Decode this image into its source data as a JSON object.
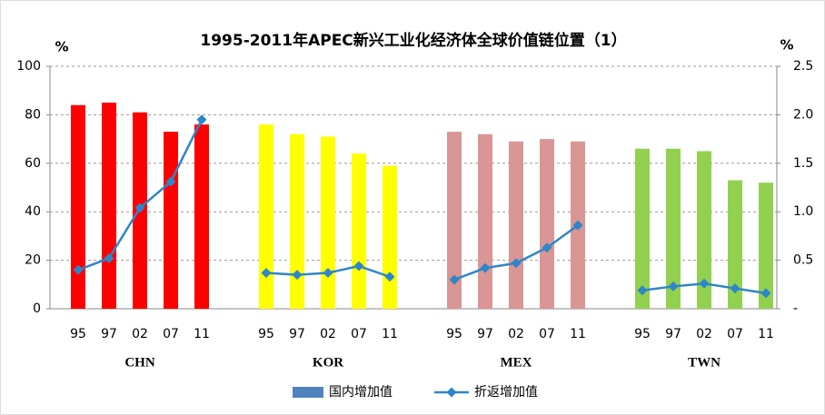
{
  "chart_data": {
    "type": "bar_line",
    "title": "1995-2011年APEC新兴工业化经济体全球价值链位置（1）",
    "y_label": "%",
    "y2_label": "%",
    "ylim": [
      0,
      100
    ],
    "yticks": [
      0,
      20,
      40,
      60,
      80,
      100
    ],
    "y2lim": [
      0,
      2.5
    ],
    "y2ticks": [
      {
        "value": 0,
        "label": "-"
      },
      0.5,
      {
        "value": 1,
        "label": "1.0"
      },
      1.5,
      {
        "value": 2,
        "label": "2.0"
      },
      2.5
    ],
    "grid": true,
    "series": [
      {
        "name": "国内增加值",
        "color": "#4f81bd"
      },
      {
        "name": "折返增加值",
        "color": "#2e86c8",
        "axis": "y2"
      }
    ],
    "groups": [
      {
        "name": "CHN",
        "color": "#ff0000",
        "categories": [
          "95",
          "97",
          "02",
          "07",
          "11"
        ],
        "bar_values": [
          84,
          85,
          81,
          73,
          76
        ],
        "line_values": [
          0.4,
          0.52,
          1.04,
          1.31,
          1.95
        ]
      },
      {
        "name": "KOR",
        "color": "#ffff00",
        "categories": [
          "95",
          "97",
          "02",
          "07",
          "11"
        ],
        "bar_values": [
          76,
          72,
          71,
          64,
          59
        ],
        "line_values": [
          0.37,
          0.35,
          0.37,
          0.44,
          0.33
        ]
      },
      {
        "name": "MEX",
        "color": "#d99694",
        "categories": [
          "95",
          "97",
          "02",
          "07",
          "11"
        ],
        "bar_values": [
          73,
          72,
          69,
          70,
          69
        ],
        "line_values": [
          0.3,
          0.42,
          0.47,
          0.63,
          0.86
        ]
      },
      {
        "name": "TWN",
        "color": "#92d050",
        "categories": [
          "95",
          "97",
          "02",
          "07",
          "11"
        ],
        "bar_values": [
          66,
          66,
          65,
          53,
          52
        ],
        "line_values": [
          0.19,
          0.23,
          0.26,
          0.21,
          0.16
        ]
      }
    ]
  }
}
